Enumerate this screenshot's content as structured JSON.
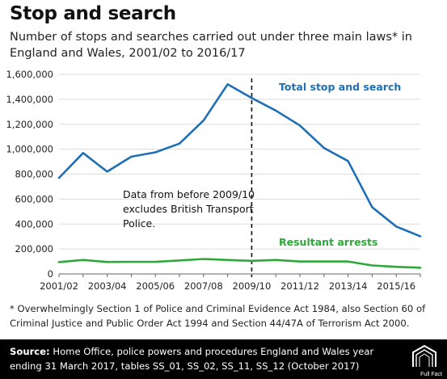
{
  "chart_data": {
    "type": "line",
    "title": "Stop and search",
    "subtitle_lines": [
      "Number of stops and searches carried out under three main laws* in",
      "England and Wales, 2001/02 to 2016/17"
    ],
    "x": [
      "2001/02",
      "2002/03",
      "2003/04",
      "2004/05",
      "2005/06",
      "2006/07",
      "2007/08",
      "2008/09",
      "2009/10",
      "2010/11",
      "2011/12",
      "2012/13",
      "2013/14",
      "2014/15",
      "2015/16",
      "2016/17"
    ],
    "x_tick_labels": [
      "2001/02",
      "2003/04",
      "2005/06",
      "2007/08",
      "2009/10",
      "2011/12",
      "2013/14",
      "2015/16"
    ],
    "y_tick_labels": [
      "0",
      "200,000",
      "400,000",
      "600,000",
      "800,000",
      "1,000,000",
      "1,200,000",
      "1,400,000",
      "1,600,000"
    ],
    "ylim": [
      0,
      1600000
    ],
    "grid": true,
    "series": [
      {
        "name": "Total stop and search",
        "color": "#1f6fb7",
        "values": [
          770000,
          970000,
          820000,
          940000,
          975000,
          1045000,
          1230000,
          1520000,
          1410000,
          1310000,
          1190000,
          1010000,
          905000,
          535000,
          380000,
          302000
        ]
      },
      {
        "name": "Resultant arrests",
        "color": "#2ea839",
        "values": [
          95000,
          112000,
          96000,
          97000,
          97000,
          108000,
          120000,
          112000,
          105000,
          112000,
          100000,
          100000,
          100000,
          68000,
          57000,
          50000
        ]
      }
    ],
    "annotation": {
      "lines": [
        "Data from before 2009/10",
        "excludes British Transport",
        "Police."
      ],
      "divider_at": "2009/10"
    }
  },
  "footnote_lines": [
    "* Overwhelmingly Section 1 of Police and Criminal Evidence Act 1984, also Section 60 of",
    "Criminal Justice and Public Order Act 1994 and Section 44/47A of Terrorism Act 2000."
  ],
  "source": {
    "label": "Source:",
    "line1": " Home Office, police powers and procedures England and Wales year",
    "line2": "ending 31 March 2017, tables SS_01, SS_02, SS_11, SS_12 (October 2017)"
  },
  "logo": {
    "icon": "full-fact-logo-icon",
    "text": "Full Fact"
  }
}
